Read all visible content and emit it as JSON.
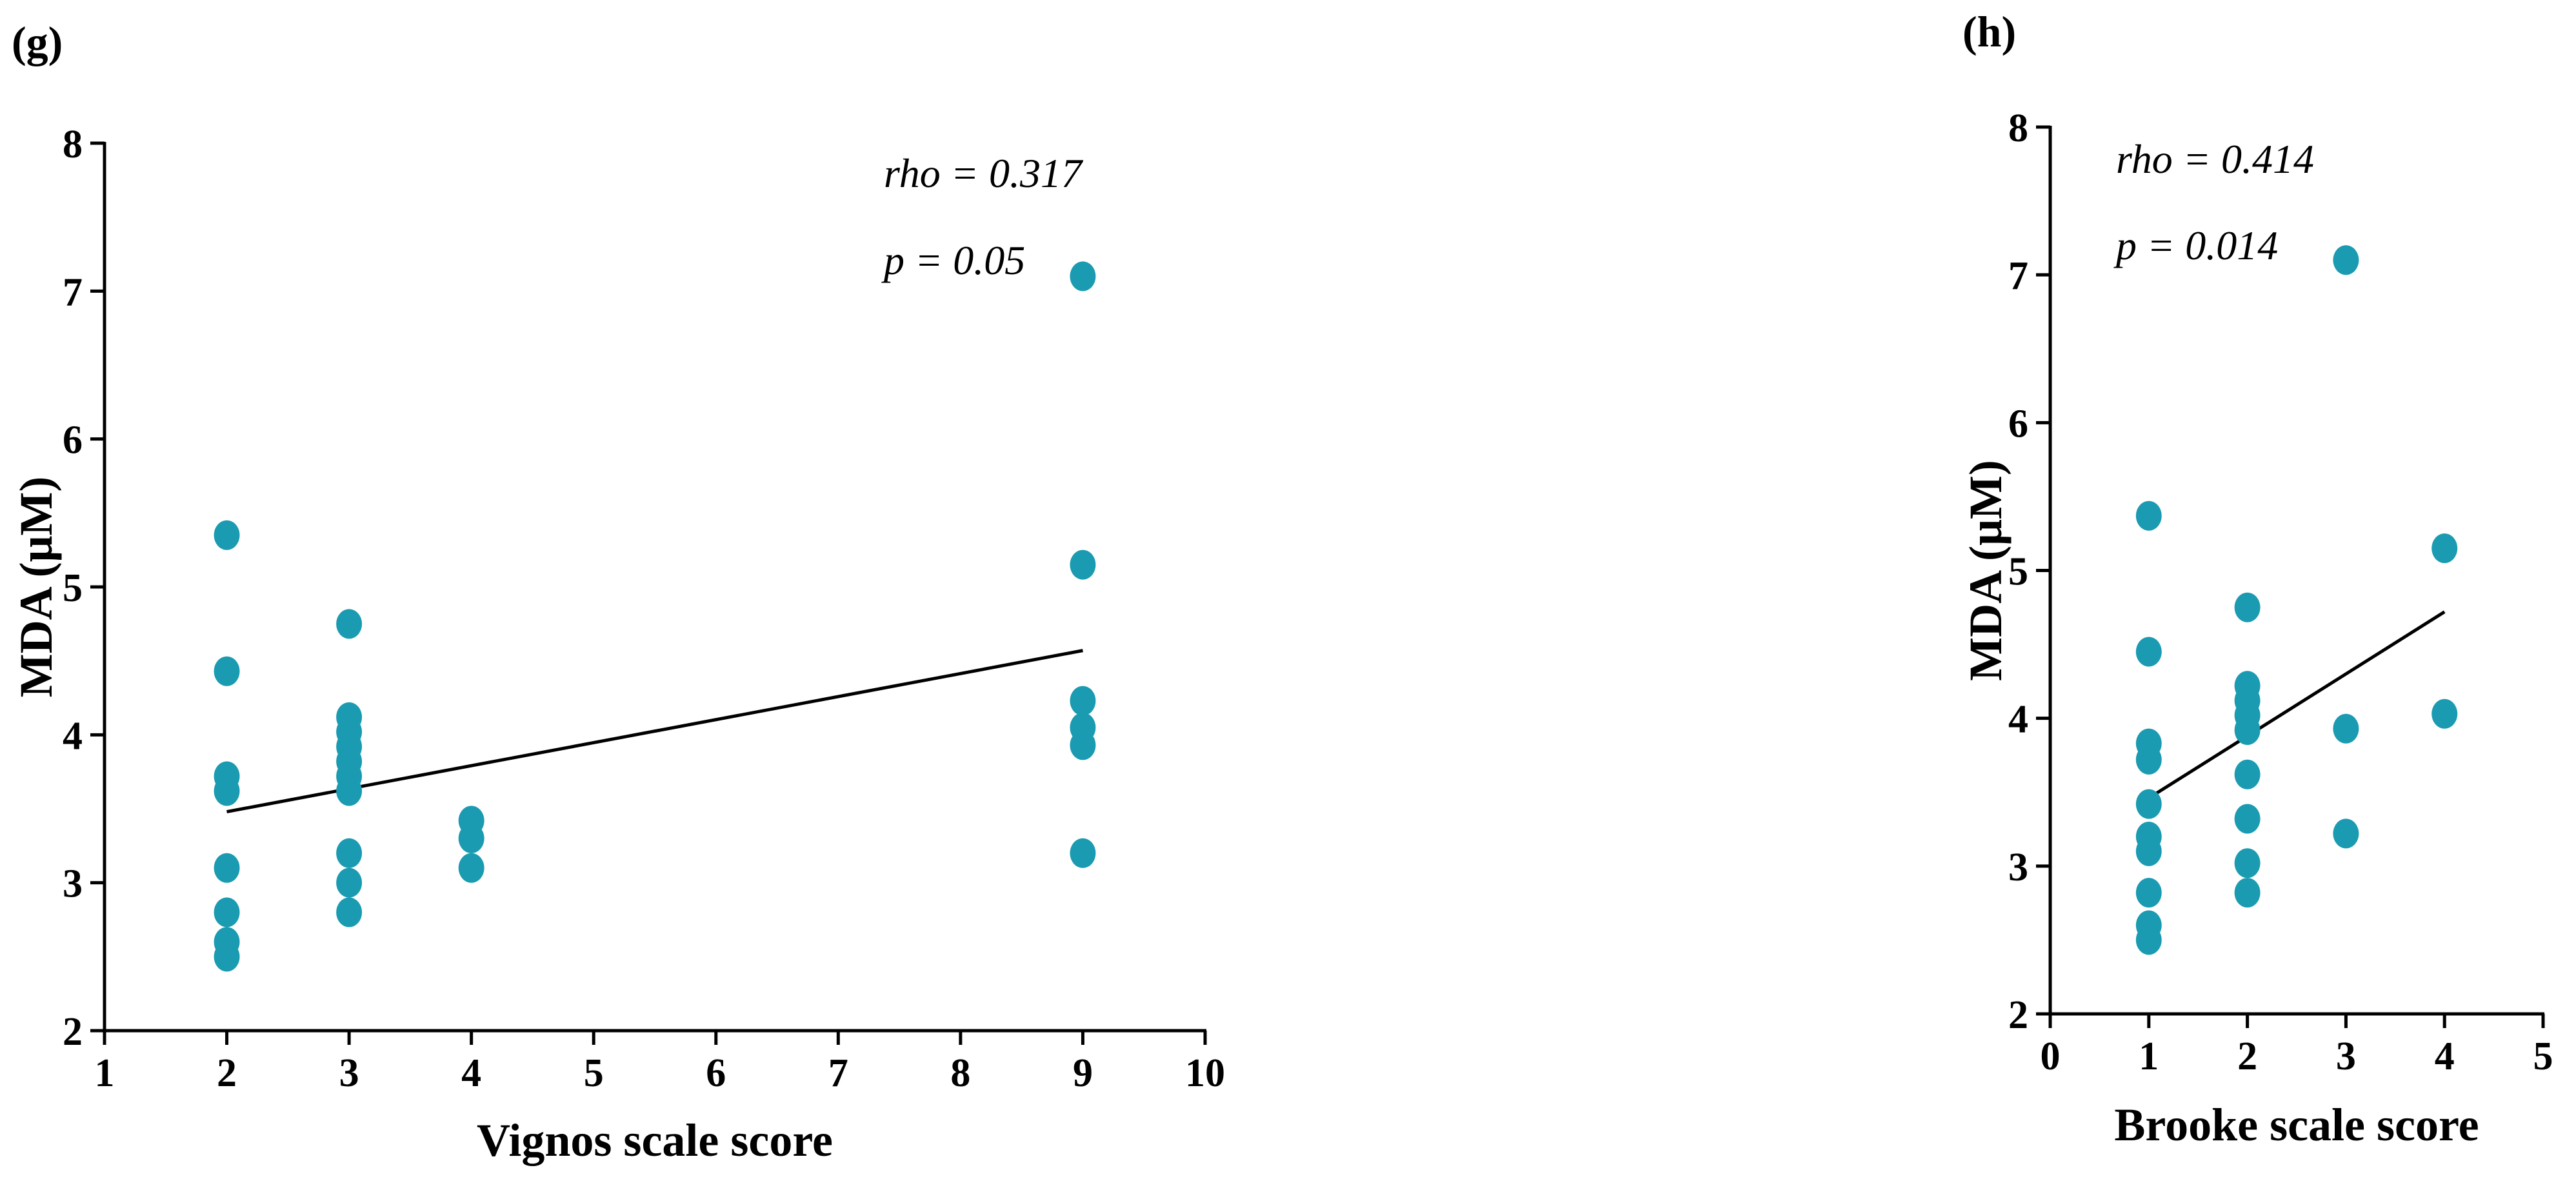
{
  "chart_data": [
    {
      "type": "scatter",
      "panel_label": "(g)",
      "xlabel": "Vignos scale score",
      "ylabel": "MDA (μM)",
      "xlim": [
        1,
        10
      ],
      "ylim": [
        2,
        8
      ],
      "xticks": [
        1,
        2,
        3,
        4,
        5,
        6,
        7,
        8,
        9,
        10
      ],
      "yticks": [
        2,
        3,
        4,
        5,
        6,
        7,
        8
      ],
      "annotations": [
        "rho = 0.317",
        "p = 0.05"
      ],
      "color": "#1a9bb1",
      "points": [
        {
          "x": 2,
          "y": 5.35
        },
        {
          "x": 2,
          "y": 4.43
        },
        {
          "x": 2,
          "y": 3.72
        },
        {
          "x": 2,
          "y": 3.62
        },
        {
          "x": 2,
          "y": 3.1
        },
        {
          "x": 2,
          "y": 2.8
        },
        {
          "x": 2,
          "y": 2.6
        },
        {
          "x": 2,
          "y": 2.5
        },
        {
          "x": 3,
          "y": 4.75
        },
        {
          "x": 3,
          "y": 4.12
        },
        {
          "x": 3,
          "y": 4.02
        },
        {
          "x": 3,
          "y": 3.92
        },
        {
          "x": 3,
          "y": 3.82
        },
        {
          "x": 3,
          "y": 3.72
        },
        {
          "x": 3,
          "y": 3.62
        },
        {
          "x": 3,
          "y": 3.2
        },
        {
          "x": 3,
          "y": 3.0
        },
        {
          "x": 3,
          "y": 2.8
        },
        {
          "x": 4,
          "y": 3.42
        },
        {
          "x": 4,
          "y": 3.3
        },
        {
          "x": 4,
          "y": 3.1
        },
        {
          "x": 9,
          "y": 7.1
        },
        {
          "x": 9,
          "y": 5.15
        },
        {
          "x": 9,
          "y": 4.23
        },
        {
          "x": 9,
          "y": 4.05
        },
        {
          "x": 9,
          "y": 3.93
        },
        {
          "x": 9,
          "y": 3.2
        }
      ],
      "fit_line": {
        "x": [
          2,
          9
        ],
        "y": [
          3.48,
          4.57
        ]
      }
    },
    {
      "type": "scatter",
      "panel_label": "(h)",
      "xlabel": "Brooke scale score",
      "ylabel": "MDA (μM)",
      "xlim": [
        0,
        5
      ],
      "ylim": [
        2,
        8
      ],
      "xticks": [
        0,
        1,
        2,
        3,
        4,
        5
      ],
      "yticks": [
        2,
        3,
        4,
        5,
        6,
        7,
        8
      ],
      "annotations": [
        "rho = 0.414",
        "p = 0.014"
      ],
      "color": "#1a9bb1",
      "points": [
        {
          "x": 1,
          "y": 5.37
        },
        {
          "x": 1,
          "y": 4.45
        },
        {
          "x": 1,
          "y": 3.83
        },
        {
          "x": 1,
          "y": 3.72
        },
        {
          "x": 1,
          "y": 3.42
        },
        {
          "x": 1,
          "y": 3.2
        },
        {
          "x": 1,
          "y": 3.1
        },
        {
          "x": 1,
          "y": 2.82
        },
        {
          "x": 1,
          "y": 2.6
        },
        {
          "x": 1,
          "y": 2.5
        },
        {
          "x": 2,
          "y": 4.75
        },
        {
          "x": 2,
          "y": 4.22
        },
        {
          "x": 2,
          "y": 4.12
        },
        {
          "x": 2,
          "y": 4.02
        },
        {
          "x": 2,
          "y": 3.92
        },
        {
          "x": 2,
          "y": 3.62
        },
        {
          "x": 2,
          "y": 3.32
        },
        {
          "x": 2,
          "y": 3.02
        },
        {
          "x": 2,
          "y": 2.82
        },
        {
          "x": 3,
          "y": 7.1
        },
        {
          "x": 3,
          "y": 3.93
        },
        {
          "x": 3,
          "y": 3.22
        },
        {
          "x": 4,
          "y": 5.15
        },
        {
          "x": 4,
          "y": 4.03
        }
      ],
      "fit_line": {
        "x": [
          1,
          4
        ],
        "y": [
          3.46,
          4.72
        ]
      }
    }
  ]
}
